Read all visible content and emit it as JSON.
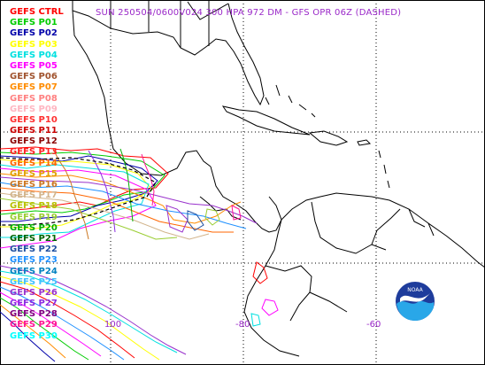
{
  "title": "SUN 250504/0600V024  300 HPA 972 DM - GFS OPR 06Z (DASHED)",
  "title_color": "#9a28c8",
  "legend": [
    {
      "label": "GEFS CTRL",
      "color": "#ff0000"
    },
    {
      "label": "GEFS P01",
      "color": "#00cc00"
    },
    {
      "label": "GEFS P02",
      "color": "#0000aa"
    },
    {
      "label": "GEFS P03",
      "color": "#ffff00"
    },
    {
      "label": "GEFS P04",
      "color": "#00e0e0"
    },
    {
      "label": "GEFS P05",
      "color": "#ff00ff"
    },
    {
      "label": "GEFS P06",
      "color": "#a0522d"
    },
    {
      "label": "GEFS P07",
      "color": "#ff8c00"
    },
    {
      "label": "GEFS P08",
      "color": "#ff8080"
    },
    {
      "label": "GEFS P09",
      "color": "#ffb6c1"
    },
    {
      "label": "GEFS P10",
      "color": "#ff3030"
    },
    {
      "label": "GEFS P11",
      "color": "#cc0000"
    },
    {
      "label": "GEFS P12",
      "color": "#8b0000"
    },
    {
      "label": "GEFS P13",
      "color": "#ff2020"
    },
    {
      "label": "GEFS P14",
      "color": "#ff6600"
    },
    {
      "label": "GEFS P15",
      "color": "#e0a000"
    },
    {
      "label": "GEFS P16",
      "color": "#cc7722"
    },
    {
      "label": "GEFS P17",
      "color": "#d2b48c"
    },
    {
      "label": "GEFS P18",
      "color": "#b8c000"
    },
    {
      "label": "GEFS P19",
      "color": "#9acd32"
    },
    {
      "label": "GEFS P20",
      "color": "#00b000"
    },
    {
      "label": "GEFS P21",
      "color": "#006400"
    },
    {
      "label": "GEFS P22",
      "color": "#1e4fa0"
    },
    {
      "label": "GEFS P23",
      "color": "#1e90ff"
    },
    {
      "label": "GEFS P24",
      "color": "#0080c0"
    },
    {
      "label": "GEFS P25",
      "color": "#40c0ff"
    },
    {
      "label": "GEFS P26",
      "color": "#9932cc"
    },
    {
      "label": "GEFS P27",
      "color": "#8a2be2"
    },
    {
      "label": "GEFS P28",
      "color": "#800080"
    },
    {
      "label": "GEFS P29",
      "color": "#ff1493"
    },
    {
      "label": "GEFS P30",
      "color": "#00ffff"
    }
  ],
  "longitude_labels": [
    "100",
    "-80",
    "-60"
  ],
  "logo_text": "NOAA"
}
